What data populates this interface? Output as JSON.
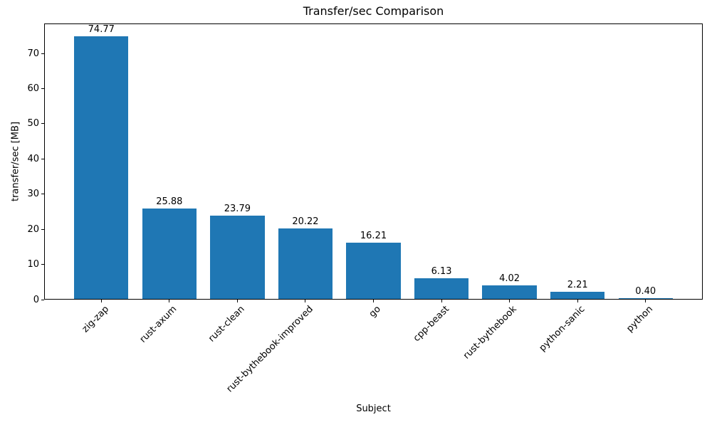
{
  "chart_data": {
    "type": "bar",
    "title": "Transfer/sec Comparison",
    "xlabel": "Subject",
    "ylabel": "transfer/sec [MB]",
    "categories": [
      "zig-zap",
      "rust-axum",
      "rust-clean",
      "rust-bythebook-improved",
      "go",
      "cpp-beast",
      "rust-bythebook",
      "python-sanic",
      "python"
    ],
    "values": [
      74.77,
      25.88,
      23.79,
      20.22,
      16.21,
      6.13,
      4.02,
      2.21,
      0.4
    ],
    "value_label_format": "2-decimals",
    "yticks": [
      0,
      10,
      20,
      30,
      40,
      50,
      60,
      70
    ],
    "ylim": [
      0,
      78.5
    ],
    "bar_color": "#1f77b4",
    "axis_color": "#000000",
    "text_color": "#000000",
    "background_color": "#ffffff",
    "grid": false,
    "legend": null,
    "bar_width_fraction": 0.8,
    "x_tick_rotation_deg": 45
  }
}
